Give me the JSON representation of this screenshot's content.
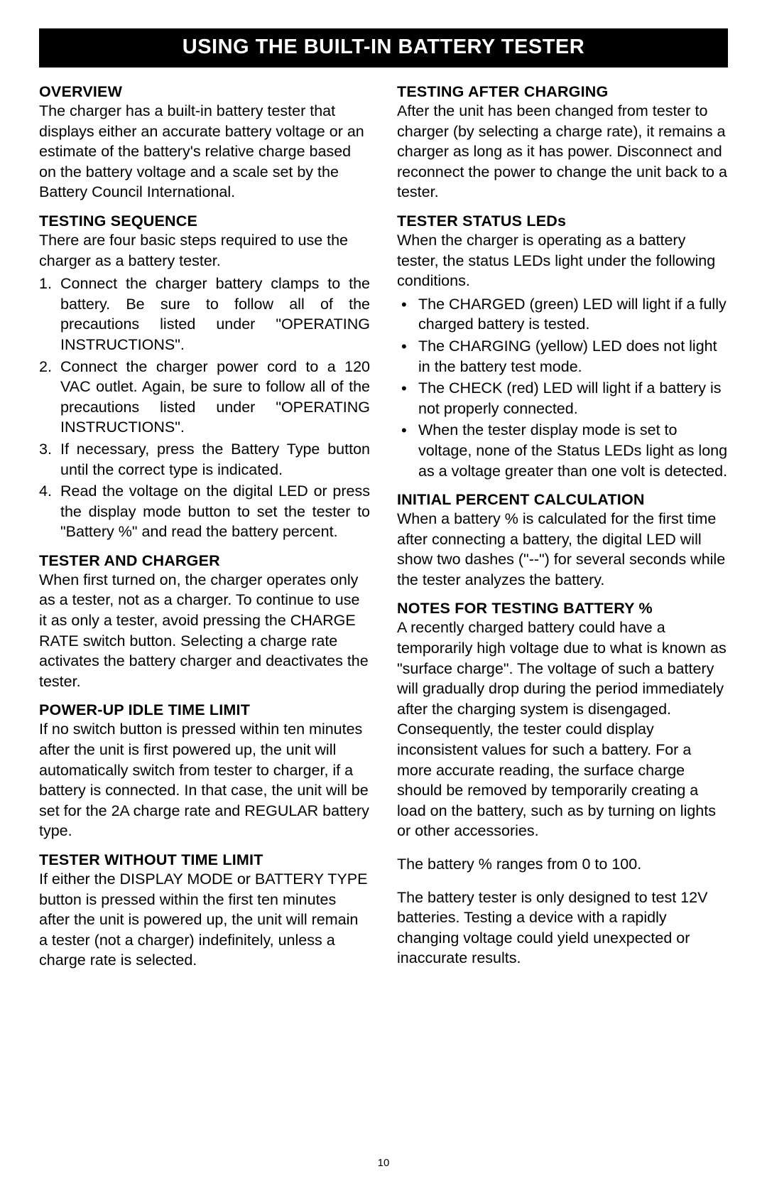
{
  "banner": "USING THE BUILT-IN BATTERY TESTER",
  "page_number": "10",
  "left": {
    "overview": {
      "title": "OVERVIEW",
      "body": "The charger has a built-in battery tester that displays either an accurate battery voltage or an estimate of the battery's relative charge based on the battery voltage and a scale set by the Battery Council International."
    },
    "testing_sequence": {
      "title": "TESTING SEQUENCE",
      "intro": "There are four basic steps required to use the charger as a battery tester.",
      "steps": [
        "Connect the charger battery clamps to the battery. Be sure to follow all of the precautions listed under \"OPERATING INSTRUCTIONS\".",
        "Connect the charger power cord to a 120 VAC outlet. Again, be sure to follow all of the precautions listed under \"OPERATING INSTRUCTIONS\".",
        "If necessary, press the Battery Type button until the correct type is indicated.",
        "Read the voltage on the digital LED or press the display mode button to set the tester to \"Battery %\" and read the battery percent."
      ]
    },
    "tester_and_charger": {
      "title": "TESTER AND CHARGER",
      "body": "When first turned on, the charger operates only as a tester, not as a charger. To continue to use it as only a tester, avoid pressing the CHARGE RATE switch button. Selecting a charge rate activates the battery charger and deactivates the tester."
    },
    "power_up_idle": {
      "title": "POWER-UP IDLE TIME LIMIT",
      "body": "If no switch button is pressed within ten minutes after the unit is first powered up, the unit will automatically switch from tester to charger, if a battery is connected. In that case, the unit will be set for the 2A charge rate and REGULAR battery type."
    },
    "tester_without_time_limit": {
      "title": "TESTER WITHOUT TIME LIMIT",
      "body": "If either the DISPLAY MODE or BATTERY TYPE button is pressed within the first ten minutes after the unit is powered up, the unit will remain a tester (not a charger) indefinitely, unless a charge rate is selected."
    }
  },
  "right": {
    "testing_after_charging": {
      "title": "TESTING AFTER CHARGING",
      "body": "After the unit has been changed from tester to charger (by selecting a charge rate), it remains a charger as long as it has power. Disconnect and reconnect the power to change the unit back to a tester."
    },
    "tester_status_leds": {
      "title": "TESTER STATUS LEDs",
      "intro": "When the charger is operating as a battery tester, the status LEDs light under the following conditions.",
      "items": [
        "The CHARGED (green) LED will light if a fully charged battery is tested.",
        "The CHARGING (yellow) LED does not light in the battery test mode.",
        "The CHECK (red) LED will light if a battery is not properly connected.",
        "When the tester display mode is set to voltage, none of the Status LEDs light as long as a voltage greater than one volt is detected."
      ]
    },
    "initial_percent": {
      "title": "INITIAL PERCENT CALCULATION",
      "body": "When a battery % is calculated for the first time after connecting a battery, the digital LED will show two dashes (\"--\") for several seconds while the tester analyzes the battery."
    },
    "notes_testing": {
      "title": "NOTES FOR TESTING BATTERY %",
      "body": "A recently charged battery could have a temporarily high voltage due to what is known as \"surface charge\". The voltage of such a battery will gradually drop during the period immediately after the charging system is disengaged. Consequently, the tester could display inconsistent values for such a battery. For a more accurate reading, the surface charge should be removed by temporarily creating a load on the battery, such as by turning on lights or other accessories.",
      "extra1": "The battery % ranges from 0 to 100.",
      "extra2": "The battery tester is only designed to test 12V batteries. Testing a device with a rapidly changing voltage could yield unexpected or inaccurate results."
    }
  }
}
